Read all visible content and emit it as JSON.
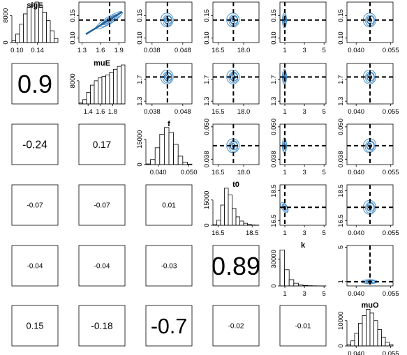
{
  "chart_data": {
    "type": "pairs",
    "description": "Pairwise posterior plot matrix: histograms on diagonal, contour plots above, correlations below",
    "variables": [
      {
        "name": "sigE",
        "range": [
          0.09,
          0.18
        ],
        "ticks": [
          0.1,
          0.14
        ],
        "tick_labels": [
          "0.10",
          "0.14"
        ],
        "marker": 0.14,
        "hist_yticks": [
          "0",
          "8000"
        ],
        "hist_ymax": 12000
      },
      {
        "name": "muE",
        "range": [
          1.25,
          2.0
        ],
        "ticks": [
          1.4,
          1.6,
          1.8
        ],
        "tick_labels": [
          "1.4",
          "1.6",
          "1.8"
        ],
        "ctick_labels": [
          "1.3",
          "1.6",
          "1.9"
        ],
        "cticks": [
          1.3,
          1.6,
          1.9
        ],
        "marker": 1.75,
        "hist_yticks": [
          "8000"
        ],
        "hist_ymax": 14000
      },
      {
        "name": "f",
        "range": [
          0.036,
          0.051
        ],
        "ticks": [
          0.04,
          0.05
        ],
        "tick_labels": [
          "0.040",
          "0.050"
        ],
        "ctick_labels": [
          "0.038",
          "0.048"
        ],
        "cticks": [
          0.038,
          0.048
        ],
        "marker": 0.043,
        "hist_yticks": [
          "0",
          "15000"
        ],
        "hist_ymax": 24000
      },
      {
        "name": "t0",
        "range": [
          16.2,
          18.9
        ],
        "ticks": [
          16.5,
          18.5
        ],
        "tick_labels": [
          "16.5",
          "18.5"
        ],
        "ctick_labels": [
          "16.5",
          "18.0"
        ],
        "cticks": [
          16.5,
          18.0
        ],
        "marker": 17.4,
        "hist_yticks": [
          "0",
          "15000"
        ],
        "hist_ymax": 24000
      },
      {
        "name": "k",
        "range": [
          0.5,
          5.2
        ],
        "ticks": [
          1,
          3,
          5
        ],
        "tick_labels": [
          "1",
          "3",
          "5"
        ],
        "marker": 1,
        "hist_yticks": [
          "0",
          "30000"
        ],
        "hist_ymax": 45000
      },
      {
        "name": "muO",
        "range": [
          0.036,
          0.056
        ],
        "ticks": [
          0.04,
          0.055
        ],
        "tick_labels": [
          "0.040",
          "0.055"
        ],
        "ctick_labels": [
          "0.040",
          "0.055"
        ],
        "cticks": [
          0.04,
          0.055
        ],
        "marker": 0.046,
        "hist_yticks": [
          "0",
          "10000"
        ],
        "hist_ymax": 16000
      }
    ],
    "upper_y_tick_labels": [
      [
        "0.10",
        "0.15"
      ],
      [
        "1.3",
        "1.7"
      ],
      [
        "0.038",
        "0.050"
      ],
      [
        "16.5",
        "18.5"
      ],
      [
        "1",
        "5"
      ]
    ],
    "upper_y_ticks": [
      [
        0.1,
        0.15
      ],
      [
        1.3,
        1.7
      ],
      [
        0.038,
        0.05
      ],
      [
        16.5,
        18.5
      ],
      [
        1,
        5
      ]
    ],
    "upper_y_markers": [
      0.14,
      1.75,
      0.043,
      17.4,
      1
    ],
    "histograms": [
      [
        500,
        2500,
        5500,
        8500,
        10500,
        11500,
        12000,
        11000,
        9000,
        6500,
        3500,
        1200
      ],
      [
        300,
        1500,
        4000,
        6500,
        8000,
        9000,
        9500,
        10000,
        11000,
        12000,
        13000,
        13500
      ],
      [
        400,
        3000,
        10000,
        18000,
        22000,
        19000,
        12000,
        5000,
        1500,
        300
      ],
      [
        300,
        3000,
        12000,
        22000,
        18000,
        10000,
        5000,
        2500,
        1200,
        500,
        200,
        100
      ],
      [
        40000,
        18000,
        7000,
        3000,
        1200,
        600,
        300,
        150,
        80,
        40
      ],
      [
        500,
        2000,
        5000,
        9000,
        12000,
        14500,
        13000,
        10000,
        6500,
        3500,
        1500,
        500
      ]
    ],
    "correlations": [
      {
        "row": 2,
        "col": 1,
        "value": "0.9"
      },
      {
        "row": 3,
        "col": 1,
        "value": "-0.24"
      },
      {
        "row": 3,
        "col": 2,
        "value": "0.17"
      },
      {
        "row": 4,
        "col": 1,
        "value": "-0.07"
      },
      {
        "row": 4,
        "col": 2,
        "value": "-0.07"
      },
      {
        "row": 4,
        "col": 3,
        "value": "0.01"
      },
      {
        "row": 5,
        "col": 1,
        "value": "-0.04"
      },
      {
        "row": 5,
        "col": 2,
        "value": "-0.04"
      },
      {
        "row": 5,
        "col": 3,
        "value": "-0.03"
      },
      {
        "row": 5,
        "col": 4,
        "value": "0.89"
      },
      {
        "row": 6,
        "col": 1,
        "value": "0.15"
      },
      {
        "row": 6,
        "col": 2,
        "value": "-0.18"
      },
      {
        "row": 6,
        "col": 3,
        "value": "-0.7"
      },
      {
        "row": 6,
        "col": 4,
        "value": "-0.02"
      },
      {
        "row": 6,
        "col": 5,
        "value": "-0.01"
      }
    ],
    "colors": {
      "contour": "#4a90c8",
      "contour_dark": "#1f5f99",
      "marker_line": "#000000",
      "frame": "#000000"
    }
  }
}
